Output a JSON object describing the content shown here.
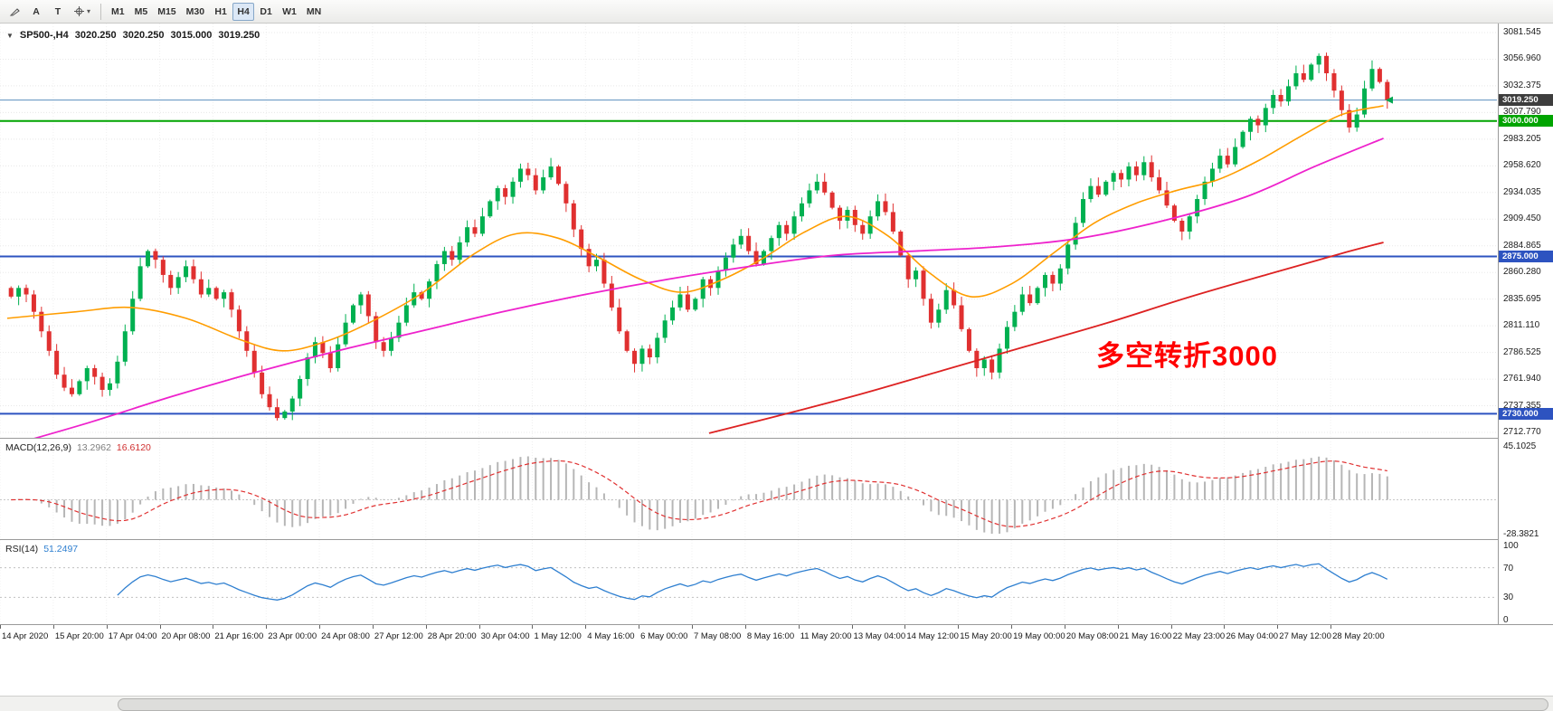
{
  "toolbar": {
    "tools": [
      {
        "name": "draw-tool"
      },
      {
        "name": "text-label-tool",
        "label": "A"
      },
      {
        "name": "text-tool",
        "label": "T"
      },
      {
        "name": "cursor-tool"
      }
    ],
    "timeframes": [
      "M1",
      "M5",
      "M15",
      "M30",
      "H1",
      "H4",
      "D1",
      "W1",
      "MN"
    ],
    "active_timeframe": "H4"
  },
  "chart_header": {
    "marker": "▼",
    "symbol_period": "SP500-,H4",
    "open": "3020.250",
    "high": "3020.250",
    "low": "3015.000",
    "close": "3019.250"
  },
  "annotation": {
    "text": "多空转折3000",
    "color": "#ff0000"
  },
  "price_axis": {
    "labels": [
      "3081.545",
      "3056.960",
      "3032.375",
      "3007.790",
      "2983.205",
      "2958.620",
      "2934.035",
      "2909.450",
      "2884.865",
      "2860.280",
      "2835.695",
      "2811.110",
      "2786.525",
      "2761.940",
      "2737.355",
      "2712.770"
    ],
    "tags": [
      {
        "value": "3019.250",
        "price": 3019.25,
        "bg": "#3d3d3d"
      },
      {
        "value": "3000.000",
        "price": 3000,
        "bg": "#00a400"
      },
      {
        "value": "2875.000",
        "price": 2875,
        "bg": "#2d53c0"
      },
      {
        "value": "2730.000",
        "price": 2730,
        "bg": "#2d53c0"
      }
    ]
  },
  "macd": {
    "label": "MACD(12,26,9)",
    "value_main": "13.2962",
    "value_signal": "16.6120",
    "axis_top": "45.1025",
    "axis_bottom": "-28.3821",
    "fast": 12,
    "slow": 26,
    "smoothing": 9,
    "histogram_color": "#b6b6b6",
    "signal_color": "#e03030"
  },
  "rsi": {
    "label": "RSI(14)",
    "value": "51.2497",
    "period": 14,
    "axis_labels": [
      "100",
      "70",
      "30",
      "0"
    ],
    "levels": [
      70,
      30
    ],
    "line_color": "#2e7fd0"
  },
  "time_axis": [
    "14 Apr 2020",
    "15 Apr 20:00",
    "17 Apr 04:00",
    "20 Apr 08:00",
    "21 Apr 16:00",
    "23 Apr 00:00",
    "24 Apr 08:00",
    "27 Apr 12:00",
    "28 Apr 20:00",
    "30 Apr 04:00",
    "1 May 12:00",
    "4 May 16:00",
    "6 May 00:00",
    "7 May 08:00",
    "8 May 16:00",
    "11 May 20:00",
    "13 May 04:00",
    "14 May 12:00",
    "15 May 20:00",
    "19 May 00:00",
    "20 May 08:00",
    "21 May 16:00",
    "22 May 23:00",
    "26 May 04:00",
    "27 May 12:00",
    "28 May 20:00"
  ],
  "chart_data": {
    "type": "candlestick",
    "symbol": "SP500-",
    "timeframe": "H4",
    "title": "SP500-,H4",
    "price_range": [
      2712.77,
      3081.545
    ],
    "first_open": 2846,
    "closes": [
      2838,
      2846,
      2840,
      2824,
      2806,
      2788,
      2766,
      2754,
      2748,
      2760,
      2772,
      2764,
      2752,
      2758,
      2778,
      2806,
      2836,
      2866,
      2880,
      2872,
      2858,
      2846,
      2856,
      2866,
      2854,
      2840,
      2846,
      2836,
      2842,
      2826,
      2806,
      2788,
      2768,
      2748,
      2736,
      2726,
      2732,
      2744,
      2762,
      2782,
      2796,
      2786,
      2772,
      2794,
      2814,
      2830,
      2840,
      2820,
      2796,
      2788,
      2800,
      2814,
      2830,
      2842,
      2836,
      2852,
      2868,
      2880,
      2872,
      2888,
      2902,
      2896,
      2912,
      2926,
      2938,
      2930,
      2944,
      2956,
      2950,
      2936,
      2948,
      2958,
      2942,
      2924,
      2900,
      2882,
      2866,
      2872,
      2850,
      2828,
      2806,
      2788,
      2776,
      2790,
      2782,
      2800,
      2816,
      2828,
      2840,
      2826,
      2836,
      2854,
      2846,
      2862,
      2874,
      2886,
      2894,
      2880,
      2868,
      2880,
      2892,
      2904,
      2896,
      2912,
      2924,
      2936,
      2944,
      2934,
      2920,
      2908,
      2918,
      2904,
      2896,
      2912,
      2926,
      2916,
      2898,
      2876,
      2854,
      2862,
      2836,
      2814,
      2826,
      2844,
      2830,
      2808,
      2788,
      2772,
      2780,
      2768,
      2790,
      2810,
      2824,
      2840,
      2832,
      2846,
      2858,
      2850,
      2864,
      2886,
      2906,
      2928,
      2940,
      2932,
      2944,
      2952,
      2946,
      2958,
      2950,
      2962,
      2948,
      2936,
      2922,
      2908,
      2898,
      2912,
      2928,
      2944,
      2956,
      2968,
      2960,
      2976,
      2990,
      3002,
      2996,
      3012,
      3024,
      3018,
      3032,
      3044,
      3038,
      3052,
      3060,
      3044,
      3028,
      3010,
      2994,
      3006,
      3030,
      3048,
      3036,
      3019.25
    ],
    "up_color": "#00b050",
    "down_color": "#e03030",
    "hlines": [
      {
        "price": 3019.25,
        "color": "#5b8fbe",
        "width": 1,
        "name": "bid-line"
      },
      {
        "price": 3000,
        "color": "#00a400",
        "width": 2,
        "name": "hline-3000"
      },
      {
        "price": 2875,
        "color": "#2d53c0",
        "width": 2,
        "name": "hline-2875"
      },
      {
        "price": 2730,
        "color": "#2d53c0",
        "width": 2,
        "name": "hline-2730"
      }
    ],
    "moving_averages": [
      {
        "name": "ma-fast-orange",
        "color": "#ff9d00",
        "width": 1.6,
        "points": [
          [
            0,
            2818
          ],
          [
            0.05,
            2824
          ],
          [
            0.09,
            2828
          ],
          [
            0.13,
            2818
          ],
          [
            0.17,
            2798
          ],
          [
            0.2,
            2788
          ],
          [
            0.23,
            2796
          ],
          [
            0.26,
            2812
          ],
          [
            0.3,
            2840
          ],
          [
            0.34,
            2878
          ],
          [
            0.37,
            2896
          ],
          [
            0.4,
            2892
          ],
          [
            0.43,
            2874
          ],
          [
            0.46,
            2854
          ],
          [
            0.49,
            2842
          ],
          [
            0.52,
            2854
          ],
          [
            0.55,
            2874
          ],
          [
            0.58,
            2898
          ],
          [
            0.61,
            2912
          ],
          [
            0.64,
            2894
          ],
          [
            0.67,
            2860
          ],
          [
            0.7,
            2838
          ],
          [
            0.73,
            2850
          ],
          [
            0.76,
            2878
          ],
          [
            0.79,
            2906
          ],
          [
            0.82,
            2924
          ],
          [
            0.85,
            2936
          ],
          [
            0.88,
            2946
          ],
          [
            0.91,
            2964
          ],
          [
            0.94,
            2986
          ],
          [
            0.97,
            3006
          ],
          [
            1,
            3014
          ]
        ]
      },
      {
        "name": "ma-mid-magenta",
        "color": "#ee22cc",
        "width": 1.8,
        "points": [
          [
            0,
            2700
          ],
          [
            0.06,
            2722
          ],
          [
            0.12,
            2746
          ],
          [
            0.18,
            2768
          ],
          [
            0.24,
            2788
          ],
          [
            0.3,
            2806
          ],
          [
            0.36,
            2824
          ],
          [
            0.42,
            2840
          ],
          [
            0.48,
            2854
          ],
          [
            0.54,
            2866
          ],
          [
            0.6,
            2876
          ],
          [
            0.66,
            2880
          ],
          [
            0.72,
            2884
          ],
          [
            0.78,
            2892
          ],
          [
            0.84,
            2908
          ],
          [
            0.9,
            2930
          ],
          [
            0.95,
            2958
          ],
          [
            1,
            2984
          ]
        ]
      },
      {
        "name": "ma-slow-red",
        "color": "#dd2222",
        "width": 1.8,
        "points": [
          [
            0.51,
            2712
          ],
          [
            0.56,
            2728
          ],
          [
            0.62,
            2748
          ],
          [
            0.68,
            2770
          ],
          [
            0.74,
            2792
          ],
          [
            0.8,
            2814
          ],
          [
            0.86,
            2838
          ],
          [
            0.92,
            2860
          ],
          [
            0.97,
            2878
          ],
          [
            1,
            2888
          ]
        ]
      }
    ]
  }
}
